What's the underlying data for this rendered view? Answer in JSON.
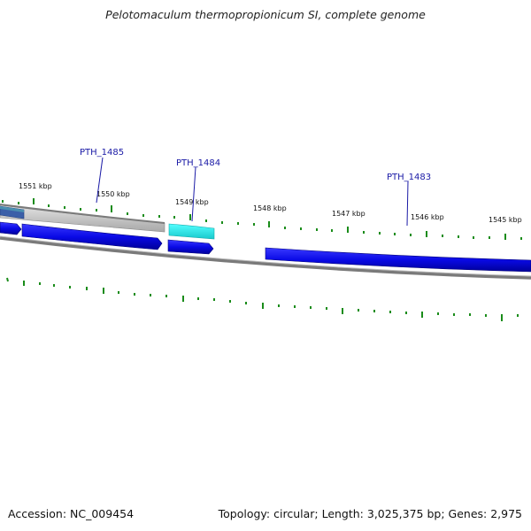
{
  "title": "Pelotomaculum thermopropionicum SI, complete genome",
  "footer": {
    "accession": "Accession: NC_009454",
    "summary": "Topology: circular; Length: 3,025,375 bp; Genes: 2,975"
  },
  "kbp_labels": [
    "1551 kbp",
    "1550 kbp",
    "1549 kbp",
    "1548 kbp",
    "1547 kbp",
    "1546 kbp",
    "1545 kbp"
  ],
  "gene_labels": [
    "PTH_1485",
    "PTH_1484",
    "PTH_1483"
  ],
  "colors": {
    "forward_gene": "#0a0ae6",
    "selected_gene": "#22e8ea",
    "pseudo_gene": "#c4c4c4",
    "backbone": "#7a7a7a",
    "tick": "#1a8c1a",
    "label": "#1a1aa6"
  }
}
